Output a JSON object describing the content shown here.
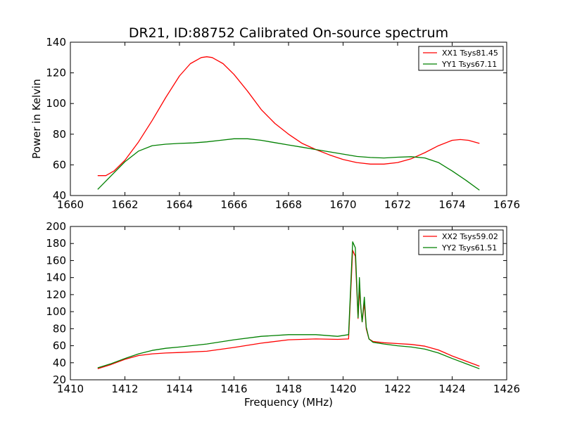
{
  "chart_data": [
    {
      "type": "line",
      "title": "DR21, ID:88752 Calibrated On-source spectrum",
      "xlabel": "",
      "ylabel": "Power in Kelvin",
      "xlim": [
        1660,
        1676
      ],
      "ylim": [
        40,
        140
      ],
      "xticks": [
        "1660",
        "1662",
        "1664",
        "1666",
        "1668",
        "1670",
        "1672",
        "1674",
        "1676"
      ],
      "yticks": [
        "40",
        "60",
        "80",
        "100",
        "120",
        "140"
      ],
      "legend_position": "top-right",
      "series": [
        {
          "name": "XX1 Tsys81.45",
          "color": "#ff0000",
          "x": [
            1661.0,
            1661.3,
            1661.6,
            1662.0,
            1662.5,
            1663.0,
            1663.5,
            1664.0,
            1664.4,
            1664.8,
            1665.0,
            1665.2,
            1665.4,
            1665.6,
            1666.0,
            1666.5,
            1667.0,
            1667.5,
            1668.0,
            1668.5,
            1669.0,
            1669.5,
            1670.0,
            1670.5,
            1671.0,
            1671.5,
            1672.0,
            1672.5,
            1673.0,
            1673.5,
            1674.0,
            1674.3,
            1674.6,
            1675.0
          ],
          "y": [
            53,
            53,
            56,
            63,
            75,
            89,
            104,
            118,
            126,
            130,
            130.5,
            130,
            128,
            126,
            119,
            108,
            96,
            87,
            80,
            74,
            70,
            66.5,
            63.5,
            61.5,
            60.5,
            60.5,
            61.5,
            64,
            68,
            72.5,
            76,
            76.5,
            76,
            74
          ]
        },
        {
          "name": "YY1 Tsys67.11",
          "color": "#008000",
          "x": [
            1661.0,
            1661.5,
            1662.0,
            1662.5,
            1663.0,
            1663.5,
            1664.0,
            1664.5,
            1665.0,
            1665.5,
            1666.0,
            1666.5,
            1667.0,
            1667.5,
            1668.0,
            1668.5,
            1669.0,
            1669.5,
            1670.0,
            1670.5,
            1671.0,
            1671.5,
            1672.0,
            1672.5,
            1673.0,
            1673.5,
            1674.0,
            1674.5,
            1675.0
          ],
          "y": [
            44,
            53,
            62,
            69,
            72.5,
            73.5,
            74,
            74.3,
            75,
            76,
            77,
            77,
            76,
            74.5,
            73,
            71.5,
            70,
            68.5,
            67,
            65.5,
            64.8,
            64.5,
            65,
            65.3,
            64.5,
            61.5,
            56,
            50,
            43.5
          ]
        }
      ]
    },
    {
      "type": "line",
      "title": "",
      "xlabel": "Frequency (MHz)",
      "ylabel": "",
      "xlim": [
        1410,
        1426
      ],
      "ylim": [
        20,
        200
      ],
      "xticks": [
        "1410",
        "1412",
        "1414",
        "1416",
        "1418",
        "1420",
        "1422",
        "1424",
        "1426"
      ],
      "yticks": [
        "20",
        "40",
        "60",
        "80",
        "100",
        "120",
        "140",
        "160",
        "180",
        "200"
      ],
      "legend_position": "top-right",
      "series": [
        {
          "name": "XX2 Tsys59.02",
          "color": "#ff0000",
          "x": [
            1411.0,
            1411.5,
            1412.0,
            1412.5,
            1413.0,
            1413.5,
            1414.0,
            1415.0,
            1416.0,
            1417.0,
            1418.0,
            1419.0,
            1419.8,
            1420.2,
            1420.35,
            1420.45,
            1420.55,
            1420.6,
            1420.7,
            1420.78,
            1420.85,
            1420.95,
            1421.1,
            1421.5,
            1422.0,
            1422.5,
            1423.0,
            1423.5,
            1424.0,
            1424.5,
            1425.0
          ],
          "y": [
            33,
            38,
            44,
            48.5,
            50.5,
            51.5,
            52,
            53.5,
            58,
            63,
            67,
            68,
            67.5,
            68,
            172,
            165,
            92,
            125,
            88,
            110,
            80,
            68,
            65,
            63.5,
            62.5,
            61.5,
            59.5,
            55,
            48,
            42,
            36
          ]
        },
        {
          "name": "YY2 Tsys61.51",
          "color": "#008000",
          "x": [
            1411.0,
            1411.5,
            1412.0,
            1412.5,
            1413.0,
            1413.5,
            1414.0,
            1415.0,
            1416.0,
            1417.0,
            1418.0,
            1419.0,
            1419.8,
            1420.2,
            1420.35,
            1420.45,
            1420.55,
            1420.6,
            1420.65,
            1420.7,
            1420.78,
            1420.85,
            1420.95,
            1421.1,
            1421.5,
            1422.0,
            1422.5,
            1423.0,
            1423.5,
            1424.0,
            1424.5,
            1425.0
          ],
          "y": [
            34,
            39,
            45,
            50.5,
            54.5,
            57,
            58.5,
            62,
            67,
            71,
            73,
            73,
            71,
            73,
            182,
            175,
            93,
            140,
            105,
            88,
            117,
            82,
            68,
            64,
            62,
            60,
            58.5,
            56,
            51.5,
            45,
            39,
            33
          ]
        }
      ]
    }
  ]
}
